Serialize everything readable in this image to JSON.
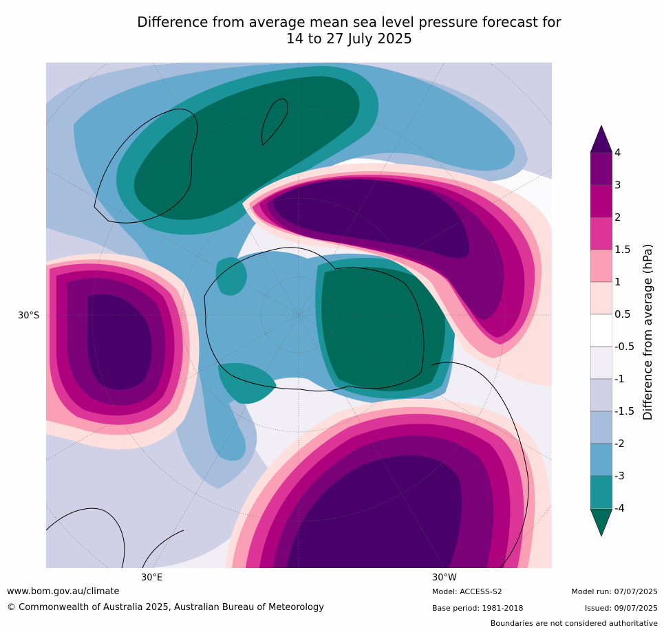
{
  "title": {
    "line1": "Difference from average mean sea level pressure forecast for",
    "line2": "14 to 27 July 2025"
  },
  "map": {
    "projection": "south polar stereographic",
    "labels": {
      "lat_30s": "30°S",
      "lon_30e": "30°E",
      "lon_30w": "30°W"
    },
    "colors": {
      "neg4": "#006b5a",
      "neg3": "#1a9399",
      "neg2": "#66a9cf",
      "neg15": "#a6bddb",
      "neg1": "#d0d1e6",
      "neg05": "#f1eef6",
      "zero": "#ffffff",
      "pos05": "#fde0dd",
      "pos1": "#fa9fb5",
      "pos15": "#dd3497",
      "pos2": "#ae017e",
      "pos3": "#7a0177",
      "pos4": "#49006a"
    }
  },
  "colorbar": {
    "label": "Difference from average (hPa)",
    "ticks": [
      "4",
      "3",
      "2",
      "1.5",
      "1",
      "0.5",
      "-0.5",
      "-1",
      "-1.5",
      "-2",
      "-3",
      "-4"
    ],
    "segments_top_to_bottom": [
      "#7a0177",
      "#ae017e",
      "#dd3497",
      "#fa9fb5",
      "#fde0dd",
      "#ffffff",
      "#f1eef6",
      "#d0d1e6",
      "#a6bddb",
      "#66a9cf",
      "#1a9399"
    ],
    "over_color": "#49006a",
    "under_color": "#006b5a"
  },
  "footer": {
    "website": "www.bom.gov.au/climate",
    "copyright": "© Commonwealth of Australia 2025, Australian Bureau of Meteorology",
    "model": "Model: ACCESS-S2",
    "base_period": "Base period: 1981-2018",
    "model_run": "Model run: 07/07/2025",
    "issued": "Issued: 09/07/2025",
    "disclaimer": "Boundaries are not considered authoritative"
  }
}
